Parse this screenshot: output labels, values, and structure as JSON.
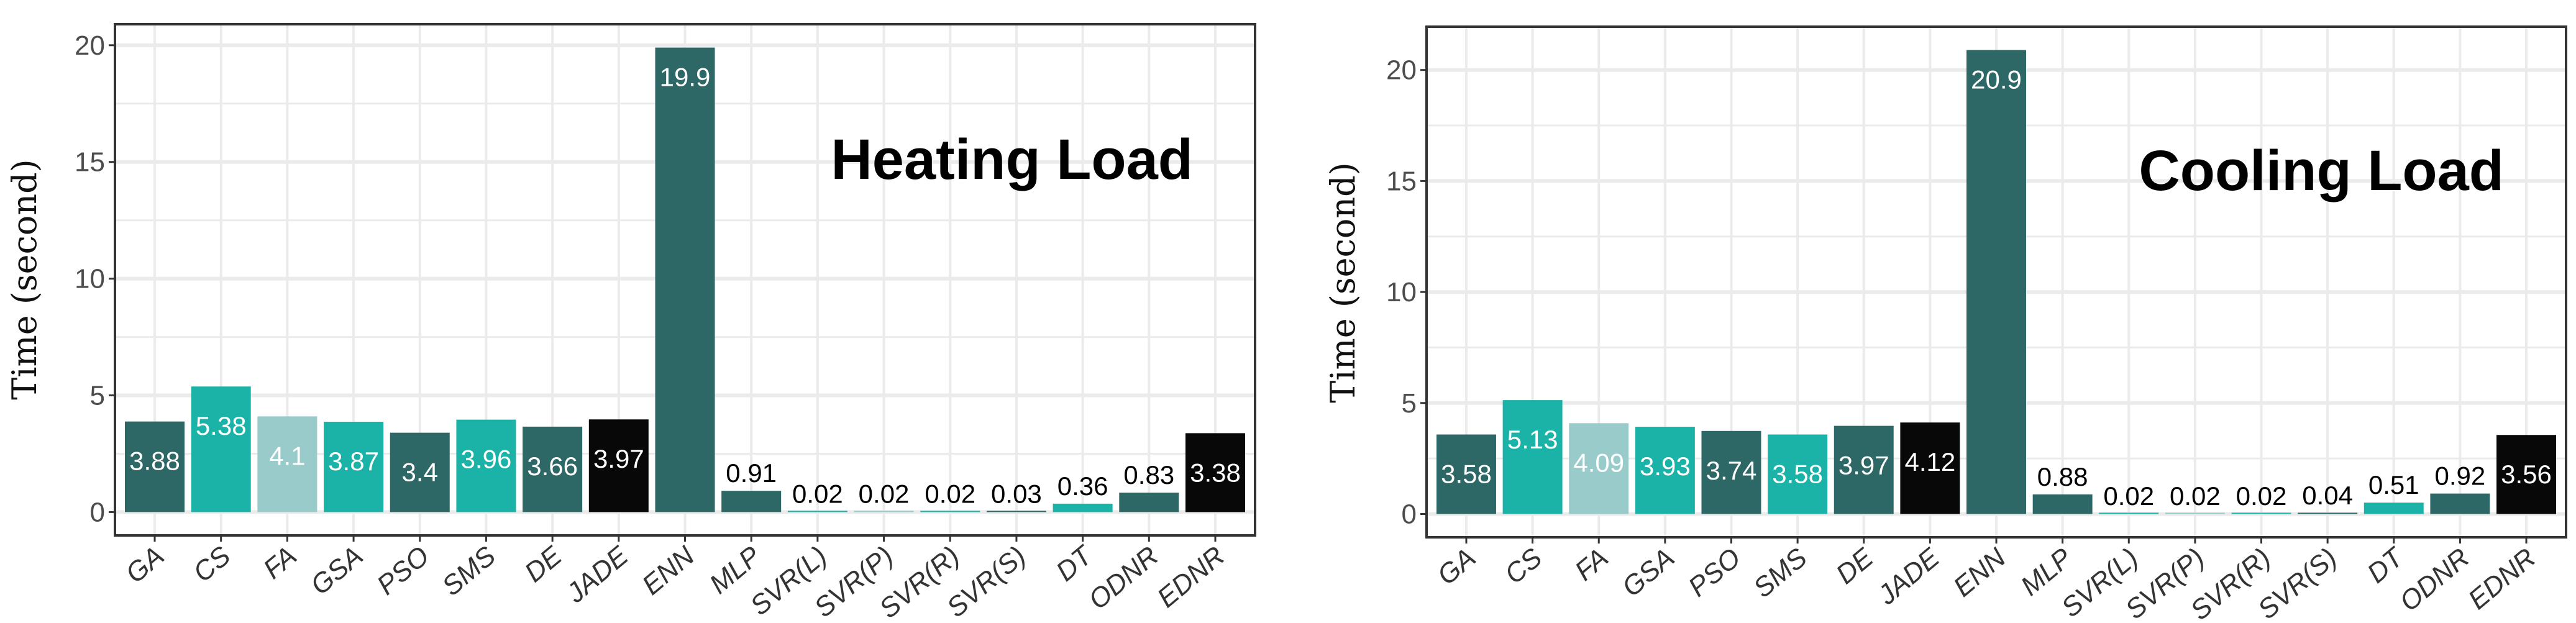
{
  "colors": {
    "dark_teal": "#2d6866",
    "teal": "#1bb3a8",
    "light_teal": "#99cbcb",
    "black": "#080808",
    "grid": "#ebebeb",
    "panel_border": "#333333"
  },
  "chart_data": [
    {
      "type": "bar",
      "annotation": "Heating Load",
      "ylabel": "Time (second)",
      "xlabel": "",
      "ylim": [
        -1,
        20.9
      ],
      "yticks": [
        0,
        5,
        10,
        15,
        20
      ],
      "grid": true,
      "categories": [
        "GA",
        "CS",
        "FA",
        "GSA",
        "PSO",
        "SMS",
        "DE",
        "JADE",
        "ENN",
        "MLP",
        "SVR(L)",
        "SVR(P)",
        "SVR(R)",
        "SVR(S)",
        "DT",
        "ODNR",
        "EDNR"
      ],
      "values": [
        3.88,
        5.38,
        4.1,
        3.87,
        3.4,
        3.96,
        3.66,
        3.97,
        19.9,
        0.91,
        0.02,
        0.02,
        0.02,
        0.03,
        0.36,
        0.83,
        3.38
      ],
      "labels": [
        "3.88",
        "5.38",
        "4.1",
        "3.87",
        "3.4",
        "3.96",
        "3.66",
        "3.97",
        "19.9",
        "0.91",
        "0.02",
        "0.02",
        "0.02",
        "0.03",
        "0.36",
        "0.83",
        "3.38"
      ],
      "bar_colors": [
        "dark_teal",
        "teal",
        "light_teal",
        "teal",
        "dark_teal",
        "teal",
        "dark_teal",
        "black",
        "dark_teal",
        "dark_teal",
        "teal",
        "light_teal",
        "teal",
        "dark_teal",
        "teal",
        "dark_teal",
        "black"
      ]
    },
    {
      "type": "bar",
      "annotation": "Cooling Load",
      "ylabel": "Time (second)",
      "xlabel": "",
      "ylim": [
        -1.05,
        21.95
      ],
      "yticks": [
        0,
        5,
        10,
        15,
        20
      ],
      "grid": true,
      "categories": [
        "GA",
        "CS",
        "FA",
        "GSA",
        "PSO",
        "SMS",
        "DE",
        "JADE",
        "ENN",
        "MLP",
        "SVR(L)",
        "SVR(P)",
        "SVR(R)",
        "SVR(S)",
        "DT",
        "ODNR",
        "EDNR"
      ],
      "values": [
        3.58,
        5.13,
        4.09,
        3.93,
        3.74,
        3.58,
        3.97,
        4.12,
        20.9,
        0.88,
        0.02,
        0.02,
        0.02,
        0.04,
        0.51,
        0.92,
        3.56
      ],
      "labels": [
        "3.58",
        "5.13",
        "4.09",
        "3.93",
        "3.74",
        "3.58",
        "3.97",
        "4.12",
        "20.9",
        "0.88",
        "0.02",
        "0.02",
        "0.02",
        "0.04",
        "0.51",
        "0.92",
        "3.56"
      ],
      "bar_colors": [
        "dark_teal",
        "teal",
        "light_teal",
        "teal",
        "dark_teal",
        "teal",
        "dark_teal",
        "black",
        "dark_teal",
        "dark_teal",
        "teal",
        "light_teal",
        "teal",
        "dark_teal",
        "teal",
        "dark_teal",
        "black"
      ]
    }
  ]
}
